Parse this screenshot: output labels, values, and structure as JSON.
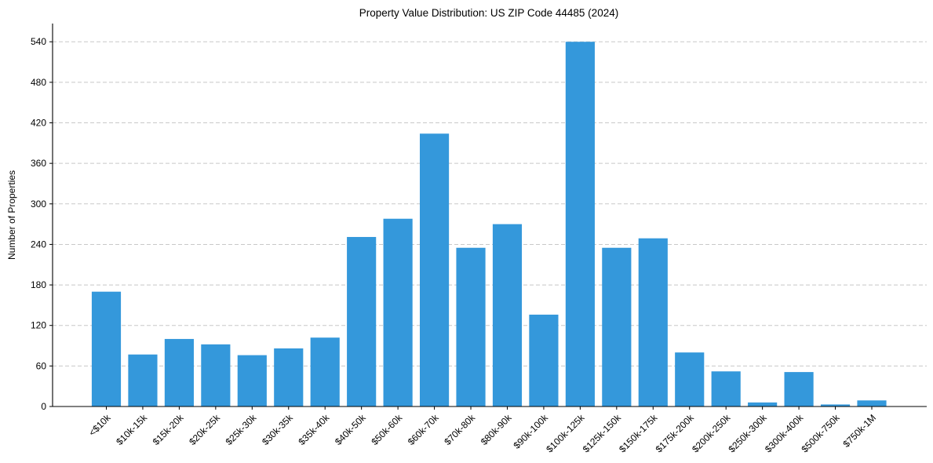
{
  "chart_data": {
    "type": "bar",
    "title": "Property Value Distribution: US ZIP Code 44485 (2024)",
    "xlabel": "",
    "ylabel": "Number of Properties",
    "categories": [
      "<$10k",
      "$10k-15k",
      "$15k-20k",
      "$20k-25k",
      "$25k-30k",
      "$30k-35k",
      "$35k-40k",
      "$40k-50k",
      "$50k-60k",
      "$60k-70k",
      "$70k-80k",
      "$80k-90k",
      "$90k-100k",
      "$100k-125k",
      "$125k-150k",
      "$150k-175k",
      "$175k-200k",
      "$200k-250k",
      "$250k-300k",
      "$300k-400k",
      "$500k-750k",
      "$750k-1M"
    ],
    "values": [
      170,
      77,
      100,
      92,
      76,
      86,
      102,
      251,
      278,
      404,
      235,
      270,
      136,
      540,
      235,
      249,
      80,
      52,
      6,
      51,
      3,
      9
    ],
    "yticks": [
      0,
      60,
      120,
      180,
      240,
      300,
      360,
      420,
      480,
      540
    ],
    "ylim": [
      0,
      567
    ],
    "grid": "y-dashed",
    "legend": null,
    "bar_color": "#3498db",
    "xtick_rotation": 45
  }
}
